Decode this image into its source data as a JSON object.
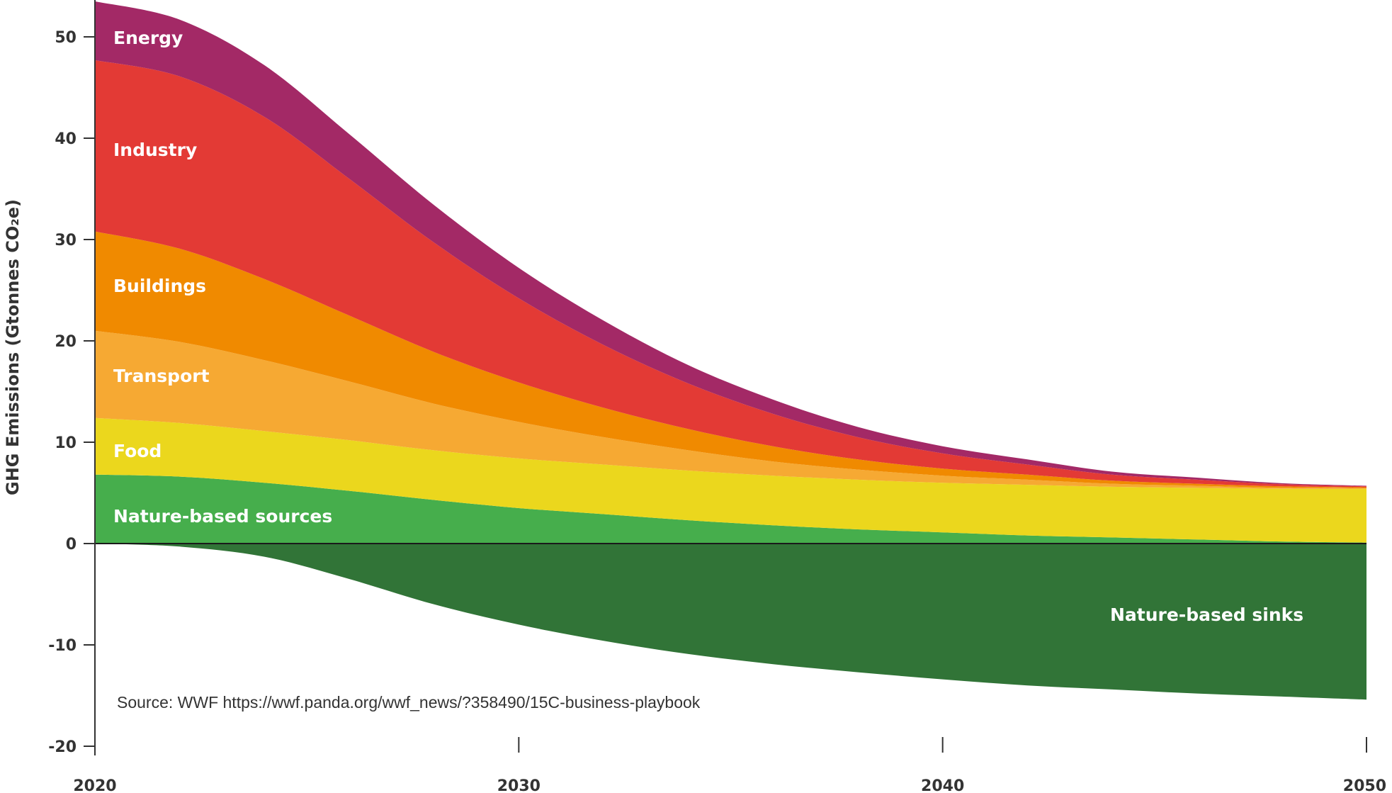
{
  "chart_data": {
    "type": "area",
    "stacked": true,
    "ylabel": "GHG Emissions (Gtonnes CO₂e)",
    "xlim": [
      2020,
      2050
    ],
    "ylim": [
      -20,
      53
    ],
    "x_ticks": [
      "2020",
      "2030",
      "2040",
      "2050"
    ],
    "y_ticks": [
      "50",
      "40",
      "30",
      "20",
      "10",
      "0",
      "-10",
      "-20"
    ],
    "x": [
      2020,
      2022,
      2024,
      2026,
      2028,
      2030,
      2032,
      2034,
      2036,
      2038,
      2040,
      2042,
      2044,
      2046,
      2048,
      2050
    ],
    "series": [
      {
        "name": "Nature-based sources",
        "color": "#46ae4c",
        "values": [
          6.8,
          6.6,
          6.0,
          5.2,
          4.3,
          3.5,
          2.9,
          2.3,
          1.8,
          1.4,
          1.1,
          0.8,
          0.6,
          0.4,
          0.2,
          0.1
        ]
      },
      {
        "name": "Food",
        "color": "#ebd71d",
        "values": [
          5.6,
          5.3,
          5.1,
          5.0,
          4.9,
          4.9,
          4.9,
          4.9,
          4.9,
          4.9,
          4.9,
          5.0,
          5.0,
          5.1,
          5.2,
          5.3
        ]
      },
      {
        "name": "Transport",
        "color": "#f6a933",
        "values": [
          8.6,
          8.0,
          7.0,
          5.8,
          4.6,
          3.6,
          2.7,
          2.0,
          1.4,
          1.0,
          0.7,
          0.5,
          0.3,
          0.2,
          0.1,
          0.05
        ]
      },
      {
        "name": "Buildings",
        "color": "#f08a00",
        "values": [
          9.8,
          9.2,
          8.0,
          6.5,
          5.1,
          3.9,
          2.9,
          2.1,
          1.5,
          1.0,
          0.7,
          0.5,
          0.3,
          0.2,
          0.15,
          0.1
        ]
      },
      {
        "name": "Industry",
        "color": "#e33a35",
        "values": [
          16.9,
          17.0,
          16.0,
          13.5,
          10.8,
          8.3,
          6.2,
          4.5,
          3.2,
          2.2,
          1.5,
          1.0,
          0.6,
          0.4,
          0.2,
          0.1
        ]
      },
      {
        "name": "Energy",
        "color": "#a32966",
        "values": [
          5.8,
          5.6,
          5.1,
          4.4,
          3.7,
          3.0,
          2.4,
          1.8,
          1.4,
          1.0,
          0.7,
          0.5,
          0.3,
          0.2,
          0.1,
          0.05
        ]
      },
      {
        "name": "Nature-based sinks",
        "color": "#317437",
        "values": [
          0,
          -0.3,
          -1.3,
          -3.5,
          -6.0,
          -8.0,
          -9.6,
          -10.9,
          -11.9,
          -12.7,
          -13.4,
          -14.0,
          -14.4,
          -14.8,
          -15.1,
          -15.4
        ]
      }
    ],
    "source": "Source: WWF https://wwf.panda.org/wwf_news/?358490/15C-business-playbook"
  }
}
